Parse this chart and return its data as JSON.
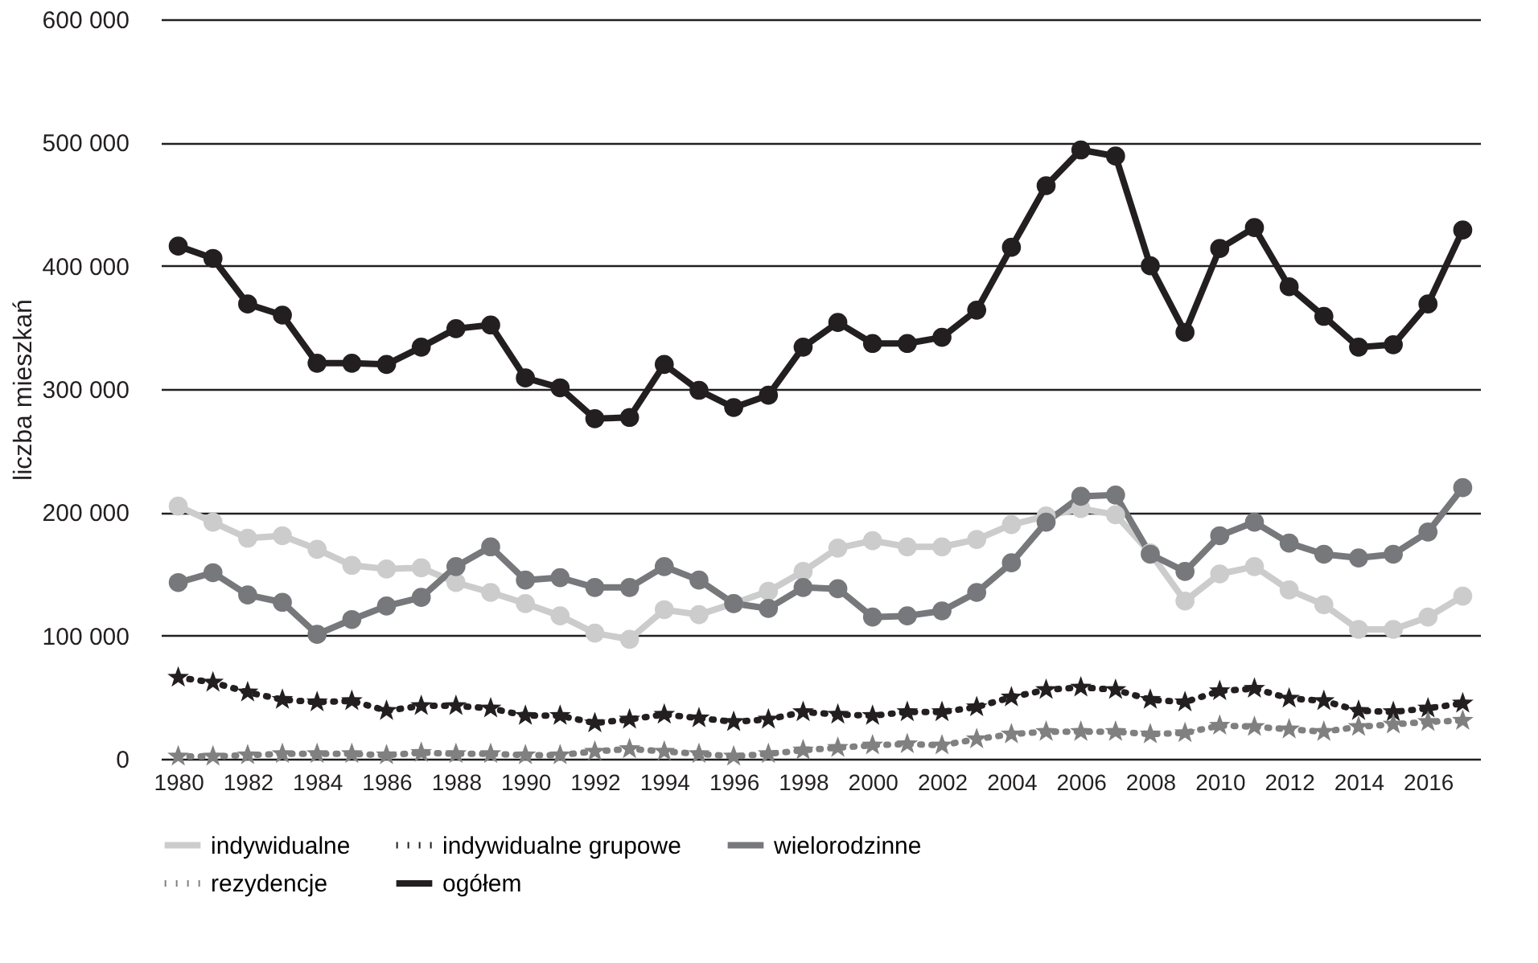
{
  "chart_data": {
    "type": "line",
    "ylabel": "liczba mieszkań",
    "categories": [
      "1980",
      null,
      "1982",
      null,
      "1984",
      null,
      "1986",
      null,
      "1988",
      null,
      "1990",
      null,
      "1992",
      null,
      "1994",
      null,
      "1996",
      null,
      "1998",
      null,
      "2000",
      null,
      "2002",
      null,
      "2004",
      null,
      "2006",
      null,
      "2008",
      null,
      "2010",
      null,
      "2012",
      null,
      "2014",
      null,
      "2016",
      null
    ],
    "ylim": [
      0,
      600000
    ],
    "yticks": [
      {
        "value": 0,
        "label": "0"
      },
      {
        "value": 100000,
        "label": "100 000"
      },
      {
        "value": 200000,
        "label": "200 000"
      },
      {
        "value": 300000,
        "label": "300 000"
      },
      {
        "value": 400000,
        "label": "400 000"
      },
      {
        "value": 500000,
        "label": "500 000"
      },
      {
        "value": 600000,
        "label": "600 000"
      }
    ],
    "grid": "y",
    "legend": "bottom",
    "series": [
      {
        "name": "indywidualne",
        "color": "#cccccc",
        "marker": "circle",
        "line_style": "solid",
        "values": [
          205000,
          192000,
          179000,
          181000,
          170000,
          157000,
          154000,
          155000,
          143000,
          135000,
          126000,
          116000,
          102000,
          97000,
          121000,
          117000,
          126000,
          136000,
          152000,
          171000,
          177000,
          172000,
          172000,
          178000,
          190000,
          197000,
          203000,
          198000,
          167000,
          128000,
          150000,
          156000,
          137000,
          125000,
          105000,
          105000,
          115000,
          132000
        ]
      },
      {
        "name": "indywidualne grupowe",
        "color": "#231f20",
        "marker": "star",
        "line_style": "dotted",
        "values": [
          66000,
          62000,
          54000,
          48000,
          46000,
          47000,
          39000,
          43000,
          43000,
          41000,
          35000,
          35000,
          29000,
          32000,
          36000,
          33000,
          30000,
          32000,
          38000,
          36000,
          35000,
          38000,
          38000,
          42000,
          50000,
          56000,
          58000,
          56000,
          48000,
          46000,
          55000,
          57000,
          49000,
          47000,
          39000,
          38000,
          41000,
          45000
        ]
      },
      {
        "name": "wielorodzinne",
        "color": "#77787b",
        "marker": "circle",
        "line_style": "solid",
        "values": [
          143000,
          151000,
          133000,
          127000,
          101000,
          113000,
          124000,
          131000,
          156000,
          172000,
          145000,
          147000,
          139000,
          139000,
          156000,
          145000,
          126000,
          122000,
          139000,
          138000,
          115000,
          116000,
          120000,
          135000,
          159000,
          192000,
          213000,
          214000,
          166000,
          152000,
          181000,
          192000,
          175000,
          166000,
          163000,
          166000,
          184000,
          220000
        ]
      },
      {
        "name": "rezydencje",
        "color": "#808080",
        "marker": "star",
        "line_style": "dotted",
        "values": [
          2000,
          2000,
          3000,
          4000,
          4000,
          4000,
          3000,
          5000,
          4000,
          4000,
          3000,
          3000,
          6000,
          8000,
          6000,
          4000,
          2000,
          4000,
          7000,
          9000,
          11000,
          12000,
          11000,
          16000,
          20000,
          22000,
          22000,
          22000,
          20000,
          21000,
          27000,
          26000,
          24000,
          22000,
          26000,
          28000,
          30000,
          31000
        ]
      },
      {
        "name": "ogółem",
        "color": "#231f20",
        "marker": "circle",
        "line_style": "solid",
        "values": [
          416000,
          406000,
          369000,
          360000,
          321000,
          321000,
          320000,
          334000,
          349000,
          352000,
          309000,
          301000,
          276000,
          277000,
          320000,
          299000,
          285000,
          295000,
          334000,
          354000,
          337000,
          337000,
          342000,
          364000,
          415000,
          465000,
          494000,
          489000,
          400000,
          346000,
          414000,
          431000,
          383000,
          359000,
          334000,
          336000,
          369000,
          429000
        ]
      }
    ]
  }
}
